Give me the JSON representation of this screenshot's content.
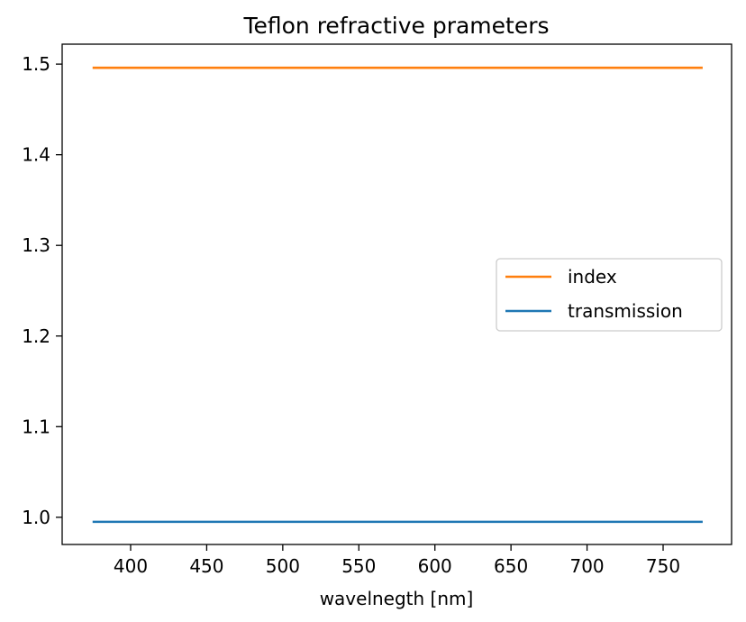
{
  "chart_data": {
    "type": "line",
    "title": "Teflon refractive prameters",
    "xlabel": "wavelnegth [nm]",
    "ylabel": "",
    "xlim": [
      355,
      795
    ],
    "ylim": [
      0.97,
      1.522
    ],
    "xticks": [
      400,
      450,
      500,
      550,
      600,
      650,
      700,
      750
    ],
    "xtick_labels": [
      "400",
      "450",
      "500",
      "550",
      "600",
      "650",
      "700",
      "750"
    ],
    "yticks": [
      1.0,
      1.1,
      1.2,
      1.3,
      1.4,
      1.5
    ],
    "ytick_labels": [
      "1.0",
      "1.1",
      "1.2",
      "1.3",
      "1.4",
      "1.5"
    ],
    "grid": false,
    "legend_position": "center-right",
    "series": [
      {
        "name": "index",
        "color": "#ff7f0e",
        "x": [
          375,
          776
        ],
        "y": [
          1.496,
          1.496
        ]
      },
      {
        "name": "transmission",
        "color": "#1f77b4",
        "x": [
          375,
          776
        ],
        "y": [
          0.995,
          0.995
        ]
      }
    ]
  }
}
